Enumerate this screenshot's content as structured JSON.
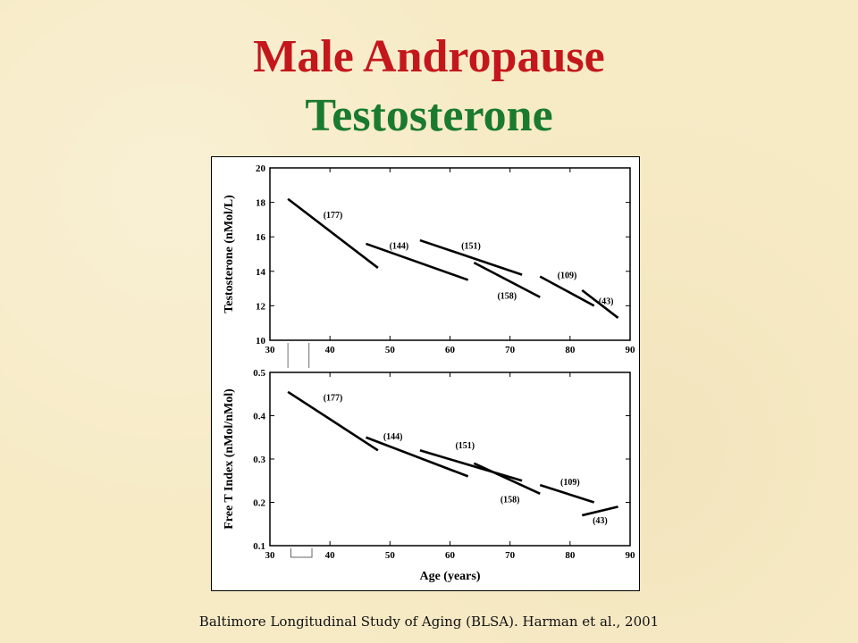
{
  "slide": {
    "title_line1": "Male Andropause",
    "title_line2": "Testosterone",
    "citation": "Baltimore Longitudinal Study of  Aging (BLSA). Harman et al., 2001"
  },
  "chart_data": [
    {
      "type": "line",
      "ylabel": "Testosterone (nMol/L)",
      "xlabel": "",
      "xlim": [
        30,
        90
      ],
      "ylim": [
        10,
        20
      ],
      "xticks": [
        30,
        40,
        50,
        60,
        70,
        80,
        90
      ],
      "yticks": [
        10,
        12,
        14,
        16,
        18,
        20
      ],
      "segments": [
        {
          "label": "(177)",
          "x": [
            33,
            48
          ],
          "y": [
            18.2,
            14.2
          ],
          "label_at": [
            40.5,
            17.1
          ]
        },
        {
          "label": "(144)",
          "x": [
            46,
            63
          ],
          "y": [
            15.6,
            13.5
          ],
          "label_at": [
            51.5,
            15.3
          ]
        },
        {
          "label": "(151)",
          "x": [
            55,
            72
          ],
          "y": [
            15.8,
            13.8
          ],
          "label_at": [
            63.5,
            15.3
          ]
        },
        {
          "label": "(158)",
          "x": [
            64,
            75
          ],
          "y": [
            14.5,
            12.5
          ],
          "label_at": [
            69.5,
            12.4
          ]
        },
        {
          "label": "(109)",
          "x": [
            75,
            84
          ],
          "y": [
            13.7,
            12.0
          ],
          "label_at": [
            79.5,
            13.6
          ]
        },
        {
          "label": "(43)",
          "x": [
            82,
            88
          ],
          "y": [
            12.9,
            11.3
          ],
          "label_at": [
            86,
            12.1
          ]
        }
      ]
    },
    {
      "type": "line",
      "ylabel": "Free T Index (nMol/nMol)",
      "xlabel": "Age (years)",
      "xlim": [
        30,
        90
      ],
      "ylim": [
        0.1,
        0.5
      ],
      "xticks": [
        30,
        40,
        50,
        60,
        70,
        80,
        90
      ],
      "yticks": [
        0.1,
        0.2,
        0.3,
        0.4,
        0.5
      ],
      "segments": [
        {
          "label": "(177)",
          "x": [
            33,
            48
          ],
          "y": [
            0.455,
            0.32
          ],
          "label_at": [
            40.5,
            0.435
          ]
        },
        {
          "label": "(144)",
          "x": [
            46,
            63
          ],
          "y": [
            0.35,
            0.26
          ],
          "label_at": [
            50.5,
            0.345
          ]
        },
        {
          "label": "(151)",
          "x": [
            55,
            72
          ],
          "y": [
            0.32,
            0.25
          ],
          "label_at": [
            62.5,
            0.325
          ]
        },
        {
          "label": "(158)",
          "x": [
            64,
            75
          ],
          "y": [
            0.29,
            0.22
          ],
          "label_at": [
            70,
            0.2
          ]
        },
        {
          "label": "(109)",
          "x": [
            75,
            84
          ],
          "y": [
            0.24,
            0.2
          ],
          "label_at": [
            80,
            0.24
          ]
        },
        {
          "label": "(43)",
          "x": [
            82,
            88
          ],
          "y": [
            0.17,
            0.19
          ],
          "label_at": [
            85,
            0.152
          ]
        }
      ]
    }
  ]
}
